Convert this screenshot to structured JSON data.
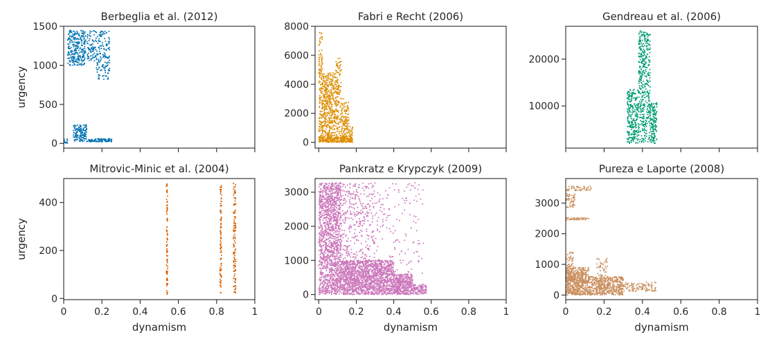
{
  "figure": {
    "shared_xlabel": "dynamism",
    "shared_ylabel": "urgency"
  },
  "chart_data": [
    {
      "type": "scatter",
      "title": "Berbeglia et al. (2012)",
      "xlabel": "",
      "ylabel": "urgency",
      "xlim": [
        0,
        1
      ],
      "ylim": [
        -60,
        1500
      ],
      "xticks": [
        0.0,
        0.2,
        0.4,
        0.6,
        0.8,
        1.0
      ],
      "show_xticklabels": false,
      "yticks": [
        0,
        500,
        1000,
        1500
      ],
      "color": "#0173b2",
      "clusters": [
        {
          "x": [
            0.02,
            0.11
          ],
          "y": [
            1000,
            1450
          ],
          "density": 260
        },
        {
          "x": [
            0.11,
            0.17
          ],
          "y": [
            1050,
            1450
          ],
          "density": 90
        },
        {
          "x": [
            0.17,
            0.24
          ],
          "y": [
            820,
            1440
          ],
          "density": 150
        },
        {
          "x": [
            0.05,
            0.12
          ],
          "y": [
            20,
            240
          ],
          "density": 140
        },
        {
          "x": [
            0.12,
            0.255
          ],
          "y": [
            20,
            60
          ],
          "density": 90
        },
        {
          "x": [
            0.0,
            0.02
          ],
          "y": [
            0,
            60
          ],
          "density": 12
        }
      ]
    },
    {
      "type": "scatter",
      "title": "Fabri e Recht (2006)",
      "xlabel": "",
      "ylabel": "",
      "xlim": [
        -0.02,
        1
      ],
      "ylim": [
        -400,
        8000
      ],
      "xticks": [
        0.0,
        0.2,
        0.4,
        0.6,
        0.8,
        1.0
      ],
      "show_xticklabels": false,
      "yticks": [
        0,
        2000,
        4000,
        6000,
        8000
      ],
      "color": "#de8f05",
      "clusters": [
        {
          "x": [
            0.0,
            0.02
          ],
          "y": [
            0,
            7600
          ],
          "density": 160
        },
        {
          "x": [
            0.02,
            0.09
          ],
          "y": [
            0,
            4800
          ],
          "density": 450
        },
        {
          "x": [
            0.09,
            0.12
          ],
          "y": [
            0,
            5800
          ],
          "density": 160
        },
        {
          "x": [
            0.12,
            0.16
          ],
          "y": [
            0,
            3000
          ],
          "density": 140
        },
        {
          "x": [
            0.16,
            0.18
          ],
          "y": [
            0,
            1100
          ],
          "density": 35
        },
        {
          "x": [
            0.0,
            0.18
          ],
          "y": [
            0,
            400
          ],
          "density": 200
        }
      ]
    },
    {
      "type": "scatter",
      "title": "Gendreau et al. (2006)",
      "xlabel": "",
      "ylabel": "",
      "xlim": [
        0,
        1
      ],
      "ylim": [
        1000,
        27000
      ],
      "xticks": [
        0.0,
        0.2,
        0.4,
        0.6,
        0.8,
        1.0
      ],
      "show_xticklabels": false,
      "yticks": [
        10000,
        20000
      ],
      "color": "#029e73",
      "clusters": [
        {
          "x": [
            0.32,
            0.38
          ],
          "y": [
            2000,
            13500
          ],
          "density": 260
        },
        {
          "x": [
            0.38,
            0.44
          ],
          "y": [
            2000,
            26000
          ],
          "density": 420
        },
        {
          "x": [
            0.44,
            0.475
          ],
          "y": [
            2000,
            11000
          ],
          "density": 140
        }
      ]
    },
    {
      "type": "scatter",
      "title": "Mitrovic-Minic et al. (2004)",
      "xlabel": "dynamism",
      "ylabel": "urgency",
      "xlim": [
        0,
        1
      ],
      "ylim": [
        -5,
        500
      ],
      "xticks": [
        0.0,
        0.2,
        0.4,
        0.6,
        0.8,
        1.0
      ],
      "show_xticklabels": true,
      "yticks": [
        0,
        200,
        400
      ],
      "color": "#d55e00",
      "clusters": [
        {
          "x": [
            0.538,
            0.544
          ],
          "y": [
            15,
            480
          ],
          "density": 90
        },
        {
          "x": [
            0.818,
            0.826
          ],
          "y": [
            15,
            480
          ],
          "density": 90
        },
        {
          "x": [
            0.888,
            0.9
          ],
          "y": [
            15,
            480
          ],
          "density": 110
        }
      ]
    },
    {
      "type": "scatter",
      "title": "Pankratz e Krypczyk (2009)",
      "xlabel": "dynamism",
      "ylabel": "",
      "xlim": [
        -0.02,
        1
      ],
      "ylim": [
        -150,
        3400
      ],
      "xticks": [
        0.0,
        0.2,
        0.4,
        0.6,
        0.8,
        1.0
      ],
      "show_xticklabels": true,
      "yticks": [
        0,
        1000,
        2000,
        3000
      ],
      "color": "#cc78bc",
      "clusters": [
        {
          "x": [
            0.0,
            0.12
          ],
          "y": [
            0,
            3280
          ],
          "density": 1500
        },
        {
          "x": [
            0.12,
            0.4
          ],
          "y": [
            0,
            1000
          ],
          "density": 1600
        },
        {
          "x": [
            0.12,
            0.3
          ],
          "y": [
            1000,
            3280
          ],
          "density": 320
        },
        {
          "x": [
            0.4,
            0.5
          ],
          "y": [
            0,
            600
          ],
          "density": 420
        },
        {
          "x": [
            0.3,
            0.56
          ],
          "y": [
            600,
            3280
          ],
          "density": 150
        },
        {
          "x": [
            0.5,
            0.575
          ],
          "y": [
            0,
            300
          ],
          "density": 120
        }
      ]
    },
    {
      "type": "scatter",
      "title": "Pureza e Laporte (2008)",
      "xlabel": "dynamism",
      "ylabel": "",
      "xlim": [
        0,
        1
      ],
      "ylim": [
        -150,
        3800
      ],
      "xticks": [
        0.0,
        0.2,
        0.4,
        0.6,
        0.8,
        1.0
      ],
      "show_xticklabels": true,
      "yticks": [
        0,
        1000,
        2000,
        3000
      ],
      "color": "#ca9161",
      "clusters": [
        {
          "x": [
            0.0,
            0.12
          ],
          "y": [
            0,
            900
          ],
          "density": 650
        },
        {
          "x": [
            0.12,
            0.3
          ],
          "y": [
            0,
            600
          ],
          "density": 520
        },
        {
          "x": [
            0.3,
            0.47
          ],
          "y": [
            120,
            420
          ],
          "density": 110
        },
        {
          "x": [
            0.0,
            0.04
          ],
          "y": [
            900,
            1400
          ],
          "density": 40
        },
        {
          "x": [
            0.16,
            0.22
          ],
          "y": [
            600,
            1200
          ],
          "density": 40
        },
        {
          "x": [
            0.0,
            0.12
          ],
          "y": [
            2450,
            2520
          ],
          "density": 50
        },
        {
          "x": [
            0.0,
            0.05
          ],
          "y": [
            2850,
            3300
          ],
          "density": 50
        },
        {
          "x": [
            0.0,
            0.14
          ],
          "y": [
            3400,
            3550
          ],
          "density": 50
        }
      ]
    }
  ]
}
